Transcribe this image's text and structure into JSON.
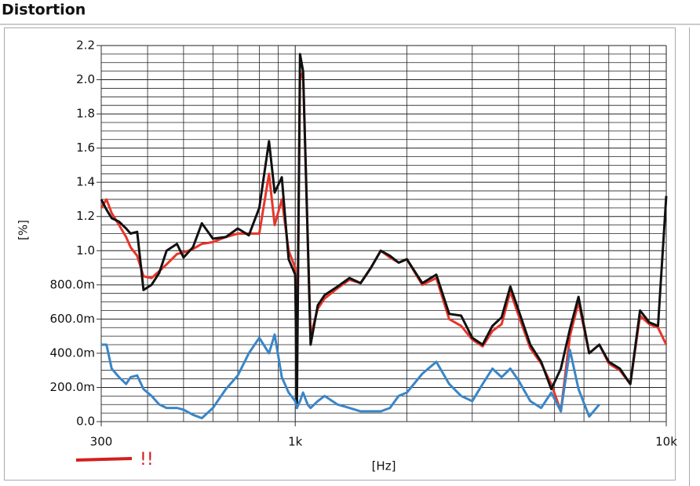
{
  "chart_data": {
    "type": "line",
    "title": "Distortion",
    "xlabel": "[Hz]",
    "ylabel": "[%]",
    "annotation": "!!",
    "xscale": "log",
    "grid": true,
    "xlim": [
      300,
      10000
    ],
    "xticks": [
      300,
      {
        "value": 1000,
        "label": "1k"
      },
      {
        "value": 10000,
        "label": "10k"
      }
    ],
    "xminorticks": [
      400,
      500,
      600,
      700,
      800,
      900,
      2000,
      3000,
      4000,
      5000,
      6000,
      7000,
      8000,
      9000
    ],
    "ylim": [
      0,
      2.2
    ],
    "yticks": [
      {
        "value": 0,
        "label": "0.0"
      },
      {
        "value": 0.2,
        "label": "200.0m"
      },
      {
        "value": 0.4,
        "label": "400.0m"
      },
      {
        "value": 0.6,
        "label": "600.0m"
      },
      {
        "value": 0.8,
        "label": "800.0m"
      },
      {
        "value": 1,
        "label": "1.0"
      },
      1.2,
      1.4,
      1.6,
      1.8,
      {
        "value": 2,
        "label": "2.0"
      },
      2.2
    ],
    "yminorticks": [
      0.05,
      0.1,
      0.15,
      0.25,
      0.3,
      0.35,
      0.45,
      0.5,
      0.55,
      0.65,
      0.7,
      0.75,
      0.85,
      0.9,
      0.95,
      1.05,
      1.1,
      1.15,
      1.25,
      1.3,
      1.35,
      1.45,
      1.5,
      1.55,
      1.65,
      1.7,
      1.75,
      1.85,
      1.9,
      1.95,
      2.05,
      2.1,
      2.15
    ],
    "x": [
      300,
      310,
      320,
      335,
      350,
      360,
      375,
      390,
      410,
      430,
      450,
      480,
      500,
      530,
      560,
      600,
      650,
      700,
      750,
      800,
      850,
      880,
      920,
      960,
      1000,
      1010,
      1030,
      1050,
      1080,
      1100,
      1150,
      1200,
      1300,
      1400,
      1500,
      1600,
      1700,
      1800,
      1900,
      2000,
      2200,
      2400,
      2600,
      2800,
      3000,
      3200,
      3400,
      3600,
      3800,
      4000,
      4300,
      4600,
      4900,
      5200,
      5500,
      5800,
      6200,
      6600,
      7000,
      7500,
      8000,
      8500,
      9000,
      9500,
      10000
    ],
    "series": [
      {
        "color": "#e8352a",
        "values": [
          1.25,
          1.3,
          1.22,
          1.15,
          1.08,
          1.02,
          0.97,
          0.85,
          0.84,
          0.88,
          0.92,
          0.98,
          0.99,
          1.01,
          1.04,
          1.05,
          1.08,
          1.1,
          1.1,
          1.1,
          1.45,
          1.15,
          1.3,
          1.0,
          0.9,
          0.3,
          2.0,
          2.05,
          1.1,
          0.5,
          0.66,
          0.72,
          0.78,
          0.83,
          0.81,
          0.9,
          1.0,
          0.96,
          0.93,
          0.95,
          0.8,
          0.84,
          0.6,
          0.56,
          0.48,
          0.44,
          0.53,
          0.57,
          0.76,
          0.62,
          0.43,
          0.34,
          0.22,
          0.06,
          0.5,
          0.7,
          0.4,
          0.45,
          0.34,
          0.3,
          0.22,
          0.62,
          0.57,
          0.55,
          0.45
        ]
      },
      {
        "color": "#111111",
        "values": [
          1.3,
          1.24,
          1.19,
          1.17,
          1.13,
          1.1,
          1.11,
          0.77,
          0.8,
          0.87,
          1.0,
          1.04,
          0.96,
          1.02,
          1.16,
          1.07,
          1.08,
          1.13,
          1.09,
          1.25,
          1.64,
          1.34,
          1.43,
          0.95,
          0.86,
          0.08,
          2.15,
          2.05,
          1.09,
          0.45,
          0.68,
          0.74,
          0.79,
          0.84,
          0.81,
          0.9,
          1.0,
          0.97,
          0.93,
          0.95,
          0.81,
          0.86,
          0.63,
          0.62,
          0.49,
          0.45,
          0.56,
          0.61,
          0.79,
          0.65,
          0.45,
          0.35,
          0.19,
          0.31,
          0.54,
          0.73,
          0.4,
          0.45,
          0.35,
          0.31,
          0.22,
          0.65,
          0.58,
          0.56,
          1.32
        ]
      },
      {
        "color": "#3a86c8",
        "values": [
          0.45,
          0.45,
          0.31,
          0.26,
          0.22,
          0.26,
          0.27,
          0.19,
          0.15,
          0.1,
          0.08,
          0.08,
          0.07,
          0.04,
          0.02,
          0.08,
          0.19,
          0.27,
          0.4,
          0.49,
          0.4,
          0.51,
          0.26,
          0.17,
          0.12,
          0.08,
          0.12,
          0.17,
          0.1,
          0.08,
          0.12,
          0.15,
          0.1,
          0.08,
          0.06,
          0.06,
          0.06,
          0.08,
          0.15,
          0.17,
          0.28,
          0.35,
          0.22,
          0.15,
          0.12,
          0.22,
          0.31,
          0.26,
          0.31,
          0.24,
          0.12,
          0.08,
          0.17,
          0.06,
          0.42,
          0.19,
          0.03,
          0.1,
          null,
          null,
          null,
          null,
          null,
          null,
          null
        ]
      }
    ]
  }
}
